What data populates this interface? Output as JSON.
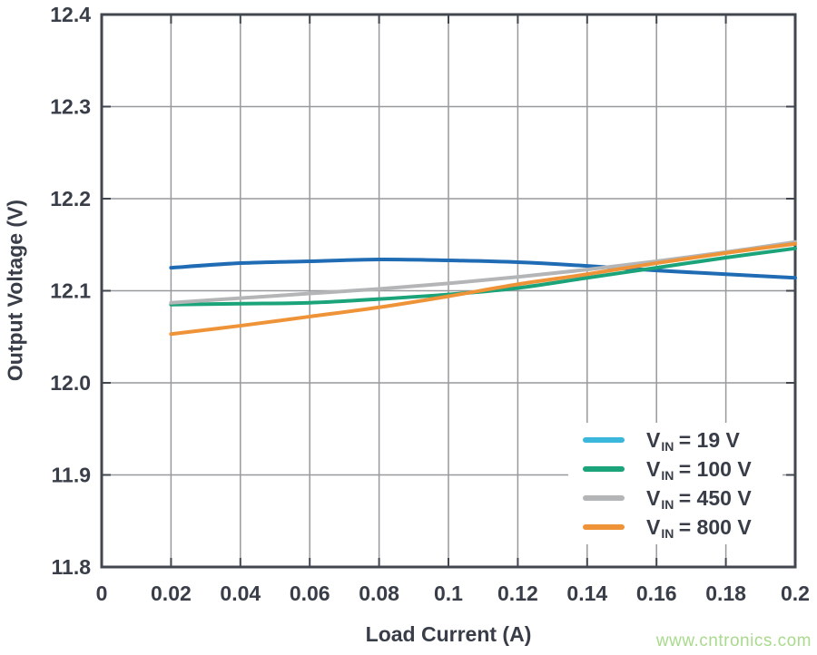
{
  "watermark": {
    "text": "www.cntronics.com",
    "color": "#a9da8d"
  },
  "chart_data": {
    "type": "line",
    "title": "",
    "xlabel": "Load Current (A)",
    "ylabel": "Output Voltage (V)",
    "xlim": [
      0,
      0.2
    ],
    "ylim": [
      11.8,
      12.4
    ],
    "grid": true,
    "legend_position": "lower right",
    "x_ticks": [
      0,
      0.02,
      0.04,
      0.06,
      0.08,
      0.1,
      0.12,
      0.14,
      0.16,
      0.18,
      0.2
    ],
    "x_tick_labels": [
      "0",
      "0.02",
      "0.04",
      "0.06",
      "0.08",
      "0.1",
      "0.12",
      "0.14",
      "0.16",
      "0.18",
      "0.2"
    ],
    "y_ticks": [
      12.4,
      12.3,
      12.2,
      12.1,
      12.0,
      11.9,
      11.8
    ],
    "y_tick_labels": [
      "12.4",
      "12.3",
      "12.2",
      "12.1",
      "12.0",
      "11.9",
      "11.8"
    ],
    "x": [
      0.02,
      0.04,
      0.06,
      0.08,
      0.1,
      0.12,
      0.14,
      0.16,
      0.18,
      0.2
    ],
    "series": [
      {
        "name": "VIN = 19 V",
        "label_v": "V",
        "label_sub": "IN",
        "label_rest": " = 19 V",
        "line_color": "#1f6cb4",
        "legend_color": "#3cb7dc",
        "values": [
          12.125,
          12.13,
          12.132,
          12.134,
          12.133,
          12.131,
          12.127,
          12.122,
          12.118,
          12.114
        ]
      },
      {
        "name": "VIN = 100 V",
        "label_v": "V",
        "label_sub": "IN",
        "label_rest": " = 100 V",
        "line_color": "#1ba379",
        "legend_color": "#1ba379",
        "values": [
          12.085,
          12.086,
          12.087,
          12.091,
          12.096,
          12.103,
          12.114,
          12.125,
          12.136,
          12.146
        ]
      },
      {
        "name": "VIN = 450 V",
        "label_v": "V",
        "label_sub": "IN",
        "label_rest": " = 450 V",
        "line_color": "#b4b5b7",
        "legend_color": "#b4b5b7",
        "values": [
          12.087,
          12.092,
          12.097,
          12.102,
          12.108,
          12.115,
          12.123,
          12.132,
          12.142,
          12.153
        ]
      },
      {
        "name": "VIN = 800 V",
        "label_v": "V",
        "label_sub": "IN",
        "label_rest": " = 800 V",
        "line_color": "#ef9338",
        "legend_color": "#ef9338",
        "values": [
          12.053,
          12.062,
          12.072,
          12.082,
          12.094,
          12.107,
          12.118,
          12.13,
          12.141,
          12.151
        ]
      }
    ],
    "colors": {
      "grid": "#97999c",
      "frame": "#42464f",
      "text": "#383d48",
      "background": "#ffffff"
    }
  }
}
